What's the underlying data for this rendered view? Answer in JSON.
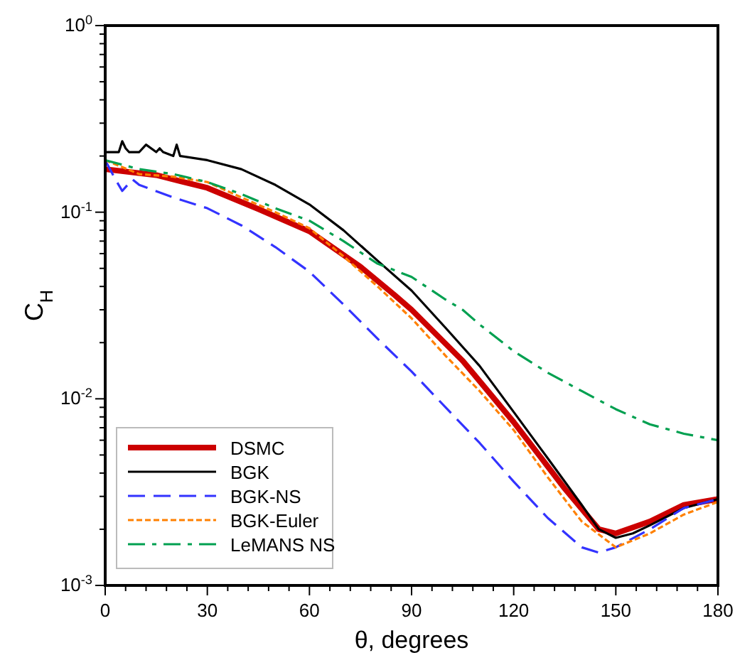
{
  "chart_data": {
    "type": "line",
    "xlabel": "θ, degrees",
    "ylabel": "C$_{H}$",
    "log": "y",
    "xlim": [
      0,
      180
    ],
    "ylim": [
      0.001,
      1
    ],
    "xticks": [
      0,
      {
        "value": 6,
        "label": null
      },
      {
        "value": 12,
        "label": null
      },
      {
        "value": 18,
        "label": null
      },
      {
        "value": 24,
        "label": null
      },
      30,
      {
        "value": 36,
        "label": null
      },
      {
        "value": 42,
        "label": null
      },
      {
        "value": 48,
        "label": null
      },
      {
        "value": 54,
        "label": null
      },
      60,
      {
        "value": 66,
        "label": null
      },
      {
        "value": 72,
        "label": null
      },
      {
        "value": 78,
        "label": null
      },
      {
        "value": 84,
        "label": null
      },
      90,
      {
        "value": 96,
        "label": null
      },
      {
        "value": 102,
        "label": null
      },
      {
        "value": 108,
        "label": null
      },
      {
        "value": 114,
        "label": null
      },
      120,
      {
        "value": 126,
        "label": null
      },
      {
        "value": 132,
        "label": null
      },
      {
        "value": 138,
        "label": null
      },
      {
        "value": 144,
        "label": null
      },
      150,
      {
        "value": 156,
        "label": null
      },
      {
        "value": 162,
        "label": null
      },
      {
        "value": 168,
        "label": null
      },
      {
        "value": 174,
        "label": null
      },
      180
    ],
    "yticks": [
      {
        "value": 0.001,
        "label": "10$^{-3}$"
      },
      {
        "value": 0.002,
        "label": null
      },
      {
        "value": 0.003,
        "label": null
      },
      {
        "value": 0.004,
        "label": null
      },
      {
        "value": 0.005,
        "label": null
      },
      {
        "value": 0.006,
        "label": null
      },
      {
        "value": 0.007,
        "label": null
      },
      {
        "value": 0.008,
        "label": null
      },
      {
        "value": 0.009,
        "label": null
      },
      {
        "value": 0.01,
        "label": "10$^{-2}$"
      },
      {
        "value": 0.02,
        "label": null
      },
      {
        "value": 0.03,
        "label": null
      },
      {
        "value": 0.04,
        "label": null
      },
      {
        "value": 0.05,
        "label": null
      },
      {
        "value": 0.06,
        "label": null
      },
      {
        "value": 0.07,
        "label": null
      },
      {
        "value": 0.08,
        "label": null
      },
      {
        "value": 0.09,
        "label": null
      },
      {
        "value": 0.1,
        "label": "10$^{-1}$"
      },
      {
        "value": 0.2,
        "label": null
      },
      {
        "value": 0.3,
        "label": null
      },
      {
        "value": 0.4,
        "label": null
      },
      {
        "value": 0.5,
        "label": null
      },
      {
        "value": 0.6,
        "label": null
      },
      {
        "value": 0.7,
        "label": null
      },
      {
        "value": 0.8,
        "label": null
      },
      {
        "value": 0.9,
        "label": null
      },
      {
        "value": 1,
        "label": "10$^{0}$"
      }
    ],
    "grid": false,
    "legend": "bottom left",
    "series": [
      {
        "name": "DSMC",
        "color": "#cc0000",
        "line_style": "solid",
        "x": [
          0,
          15,
          30,
          45,
          60,
          75,
          85,
          90,
          105,
          120,
          135,
          145,
          150,
          160,
          170,
          180
        ],
        "values": [
          0.17,
          0.158,
          0.135,
          0.104,
          0.079,
          0.051,
          0.036,
          0.03,
          0.016,
          0.0075,
          0.0033,
          0.002,
          0.0019,
          0.0022,
          0.0027,
          0.0029
        ]
      },
      {
        "name": "BGK",
        "color": "#000000",
        "line_style": "solid",
        "x": [
          0,
          4,
          5,
          6,
          7,
          10,
          12,
          15,
          16,
          17,
          20,
          21,
          22,
          30,
          40,
          50,
          60,
          70,
          80,
          90,
          100,
          110,
          120,
          130,
          140,
          145,
          150,
          155,
          160,
          170,
          180
        ],
        "values": [
          0.21,
          0.21,
          0.24,
          0.22,
          0.21,
          0.21,
          0.23,
          0.21,
          0.22,
          0.21,
          0.2,
          0.23,
          0.2,
          0.19,
          0.17,
          0.14,
          0.11,
          0.08,
          0.055,
          0.038,
          0.024,
          0.015,
          0.0085,
          0.0048,
          0.0027,
          0.002,
          0.0018,
          0.0019,
          0.0021,
          0.0026,
          0.0029
        ]
      },
      {
        "name": "BGK-NS",
        "color": "#3333ff",
        "line_style": "dashed",
        "x": [
          0,
          3,
          5,
          8,
          10,
          20,
          30,
          40,
          50,
          60,
          70,
          80,
          90,
          100,
          110,
          120,
          130,
          140,
          145,
          150,
          160,
          170,
          180
        ],
        "values": [
          0.19,
          0.15,
          0.13,
          0.15,
          0.14,
          0.12,
          0.105,
          0.085,
          0.065,
          0.048,
          0.032,
          0.021,
          0.014,
          0.009,
          0.0058,
          0.0036,
          0.0023,
          0.0016,
          0.0015,
          0.0016,
          0.002,
          0.0026,
          0.0029
        ]
      },
      {
        "name": "BGK-Euler",
        "color": "#ff8000",
        "line_style": "dotted",
        "x": [
          0,
          10,
          20,
          30,
          40,
          50,
          60,
          70,
          80,
          90,
          100,
          110,
          120,
          130,
          140,
          150,
          160,
          170,
          180
        ],
        "values": [
          0.19,
          0.16,
          0.155,
          0.145,
          0.12,
          0.1,
          0.082,
          0.058,
          0.04,
          0.027,
          0.017,
          0.011,
          0.0068,
          0.0038,
          0.0022,
          0.0016,
          0.0019,
          0.0024,
          0.0028
        ]
      },
      {
        "name": "LeMANS NS",
        "color": "#00a050",
        "line_style": "dashdot",
        "x": [
          0,
          10,
          20,
          30,
          40,
          50,
          60,
          70,
          80,
          90,
          100,
          105,
          110,
          120,
          130,
          140,
          150,
          160,
          170,
          180
        ],
        "values": [
          0.19,
          0.17,
          0.16,
          0.145,
          0.125,
          0.105,
          0.09,
          0.07,
          0.053,
          0.045,
          0.034,
          0.03,
          0.025,
          0.018,
          0.0138,
          0.011,
          0.0088,
          0.0073,
          0.0065,
          0.006
        ]
      }
    ]
  }
}
